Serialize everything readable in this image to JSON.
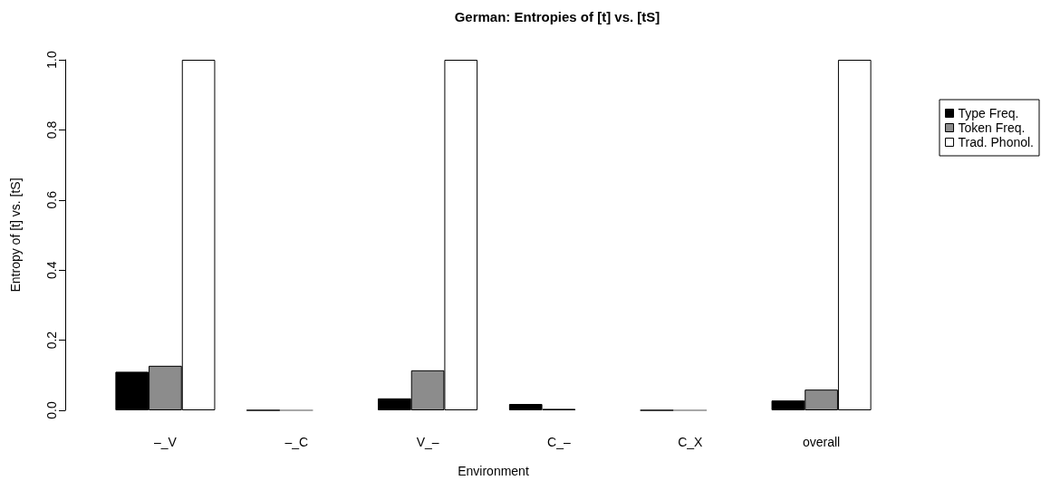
{
  "chart_data": {
    "type": "bar",
    "title": "German: Entropies of [t] vs. [tS]",
    "xlabel": "Environment",
    "ylabel": "Entropy of [t] vs. [tS]",
    "categories": [
      "–_V",
      "–_C",
      "V_–",
      "C_–",
      "C_X",
      "overall"
    ],
    "series": [
      {
        "name": "Type Freq.",
        "color": "#000000",
        "values": [
          0.11,
          0,
          0.034,
          0.018,
          0,
          0.028
        ]
      },
      {
        "name": "Token Freq.",
        "color": "#8c8c8c",
        "values": [
          0.127,
          0,
          0.114,
          0.004,
          0,
          0.059
        ]
      },
      {
        "name": "Trad. Phonol.",
        "color": "#ffffff",
        "values": [
          1,
          0,
          1,
          0,
          0,
          1
        ]
      }
    ],
    "ylim": [
      0,
      1
    ],
    "yticks": [
      {
        "value": 0,
        "label": "0.0"
      },
      0.2,
      0.4,
      0.6,
      0.8,
      {
        "value": 1,
        "label": "1.0"
      }
    ],
    "grid": false,
    "legend": "top right"
  }
}
